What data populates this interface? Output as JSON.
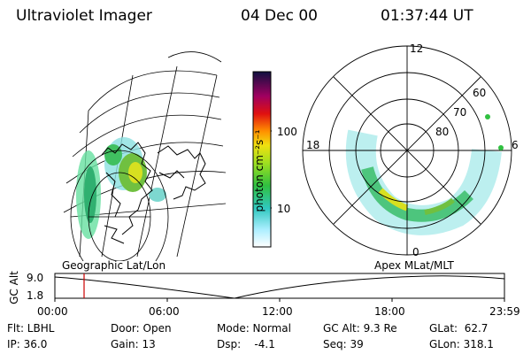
{
  "header": {
    "title": "Ultraviolet Imager",
    "date": "04 Dec 00",
    "time": "01:37:44 UT"
  },
  "colorbar": {
    "unit_label": "photon cm⁻²s⁻¹",
    "ticks": [
      "100",
      "10"
    ]
  },
  "polar_plot": {
    "mlt_labels": [
      "12",
      "18",
      "6",
      "0"
    ],
    "lat_labels": [
      "60",
      "70",
      "80"
    ]
  },
  "timeline": {
    "left_caption": "Geographic Lat/Lon",
    "right_caption": "Apex MLat/MLT",
    "axis_title": "GC Alt",
    "y_ticks": [
      "9.0",
      "1.8"
    ],
    "x_ticks": [
      "00:00",
      "06:00",
      "12:00",
      "18:00",
      "23:59"
    ],
    "current_marker_color": "#cc0000"
  },
  "info": {
    "flt": "Flt: LBHL",
    "ip": "IP: 36.0",
    "door": "Door: Open",
    "gain": "Gain: 13",
    "mode": "Mode: Normal",
    "dsp": "Dsp:    -4.1",
    "gc_alt": "GC Alt: 9.3 Re",
    "seq": "Seq: 39",
    "glat": "GLat:  62.7",
    "glon": "GLon: 318.1"
  }
}
